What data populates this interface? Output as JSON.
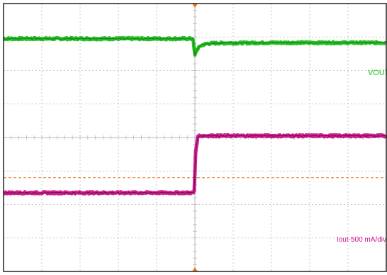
{
  "chart_data": {
    "type": "line",
    "title": "",
    "xlabel": "",
    "ylabel": "",
    "divisions": {
      "horizontal": 10,
      "vertical": 8
    },
    "grid": true,
    "trigger_division": 5.0,
    "series": [
      {
        "name": "VOUT",
        "color": "#1fbf1f",
        "units": "div",
        "x": [
          0,
          4.95,
          5.0,
          5.05,
          5.15,
          5.3,
          5.6,
          6.0,
          7.0,
          10
        ],
        "y": [
          2.95,
          2.95,
          2.45,
          2.62,
          2.74,
          2.8,
          2.82,
          2.82,
          2.83,
          2.83
        ]
      },
      {
        "name": "Iout-500 mA/div",
        "color": "#d0148c",
        "units": "div",
        "x": [
          0,
          4.98,
          5.02,
          5.08,
          5.2,
          10
        ],
        "y": [
          -1.65,
          -1.65,
          -0.4,
          0.05,
          0.05,
          0.05
        ]
      }
    ],
    "reference_line": {
      "color": "#e4742a",
      "y": -1.2
    }
  },
  "labels": {
    "vout": "VOUT",
    "iout": "Iout-500 mA/div"
  },
  "colors": {
    "grid": "#b9b9b9",
    "frame": "#222222",
    "ch1": "#1fbf1f",
    "ch2": "#d0148c",
    "ref": "#e4742a",
    "marker": "#e4742a"
  }
}
